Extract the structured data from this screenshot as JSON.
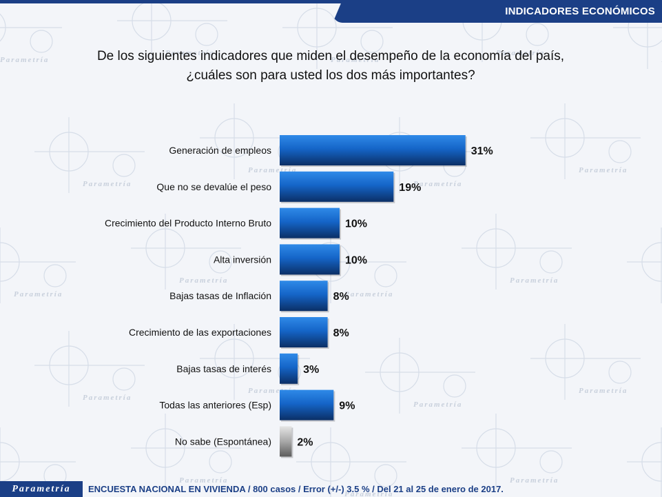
{
  "header": {
    "title": "INDICADORES ECONÓMICOS"
  },
  "question": {
    "line1": "De los siguientes indicadores que miden el desempeño de la economía del país,",
    "line2": "¿cuáles son para usted los dos más importantes?"
  },
  "footer": {
    "logo": "Parametría",
    "note": "ENCUESTA NACIONAL EN VIVIENDA / 800 casos / Error (+/-) 3.5 % / Del 21 al 25 de enero de 2017."
  },
  "watermark": {
    "text": "Parametría"
  },
  "colors": {
    "bar": "#1565c8",
    "bar_dark": "#0b2f66",
    "bar_grey": "#9a9a9a",
    "header": "#1b3f86"
  },
  "chart_data": {
    "type": "bar",
    "orientation": "horizontal",
    "categories": [
      "Generación de empleos",
      "Que no se devalúe el peso",
      "Crecimiento del Producto Interno Bruto",
      "Alta inversión",
      "Bajas tasas de Inflación",
      "Crecimiento de las exportaciones",
      "Bajas tasas de interés",
      "Todas las anteriores (Esp)",
      "No sabe (Espontánea)"
    ],
    "values": [
      31,
      19,
      10,
      10,
      8,
      8,
      3,
      9,
      2
    ],
    "value_labels": [
      "31%",
      "19%",
      "10%",
      "10%",
      "8%",
      "8%",
      "3%",
      "9%",
      "2%"
    ],
    "unit": "%",
    "grey_categories": [
      "No sabe (Espontánea)"
    ]
  }
}
